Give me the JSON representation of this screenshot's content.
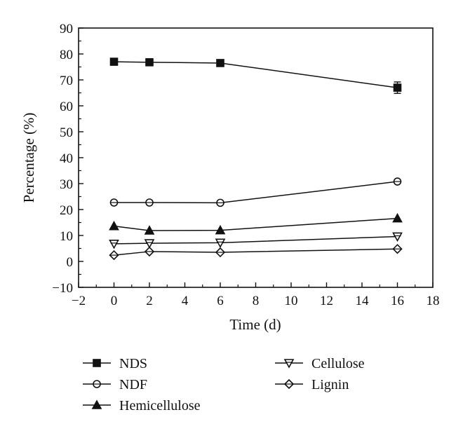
{
  "chart_data": {
    "type": "line",
    "xlabel": "Time (d)",
    "ylabel": "Percentage (%)",
    "xlim": [
      -2,
      18
    ],
    "ylim": [
      -10,
      90
    ],
    "xticks": [
      -2,
      0,
      2,
      4,
      6,
      8,
      10,
      12,
      14,
      16,
      18
    ],
    "yticks": [
      -10,
      0,
      10,
      20,
      30,
      40,
      50,
      60,
      70,
      80,
      90
    ],
    "x": [
      0,
      2,
      6,
      16
    ],
    "grid": false,
    "legend_position": "bottom",
    "series": [
      {
        "name": "NDS",
        "marker": "square-filled",
        "values": [
          77.0,
          76.8,
          76.5,
          67.0
        ],
        "error": [
          0,
          0,
          0,
          2.2
        ]
      },
      {
        "name": "NDF",
        "marker": "circle-open",
        "values": [
          22.7,
          22.7,
          22.6,
          30.8
        ],
        "error": [
          0,
          0,
          0,
          0
        ]
      },
      {
        "name": "Hemicellulose",
        "marker": "triangle-up-filled",
        "values": [
          13.6,
          11.9,
          12.0,
          16.6
        ],
        "error": [
          0,
          0,
          0,
          0
        ]
      },
      {
        "name": "Cellulose",
        "marker": "triangle-down-open",
        "values": [
          6.8,
          7.0,
          7.2,
          9.6
        ],
        "error": [
          0,
          0,
          0,
          0
        ]
      },
      {
        "name": "Lignin",
        "marker": "diamond-open",
        "values": [
          2.4,
          3.8,
          3.5,
          4.8
        ],
        "error": [
          0,
          0,
          0,
          0
        ]
      }
    ]
  }
}
